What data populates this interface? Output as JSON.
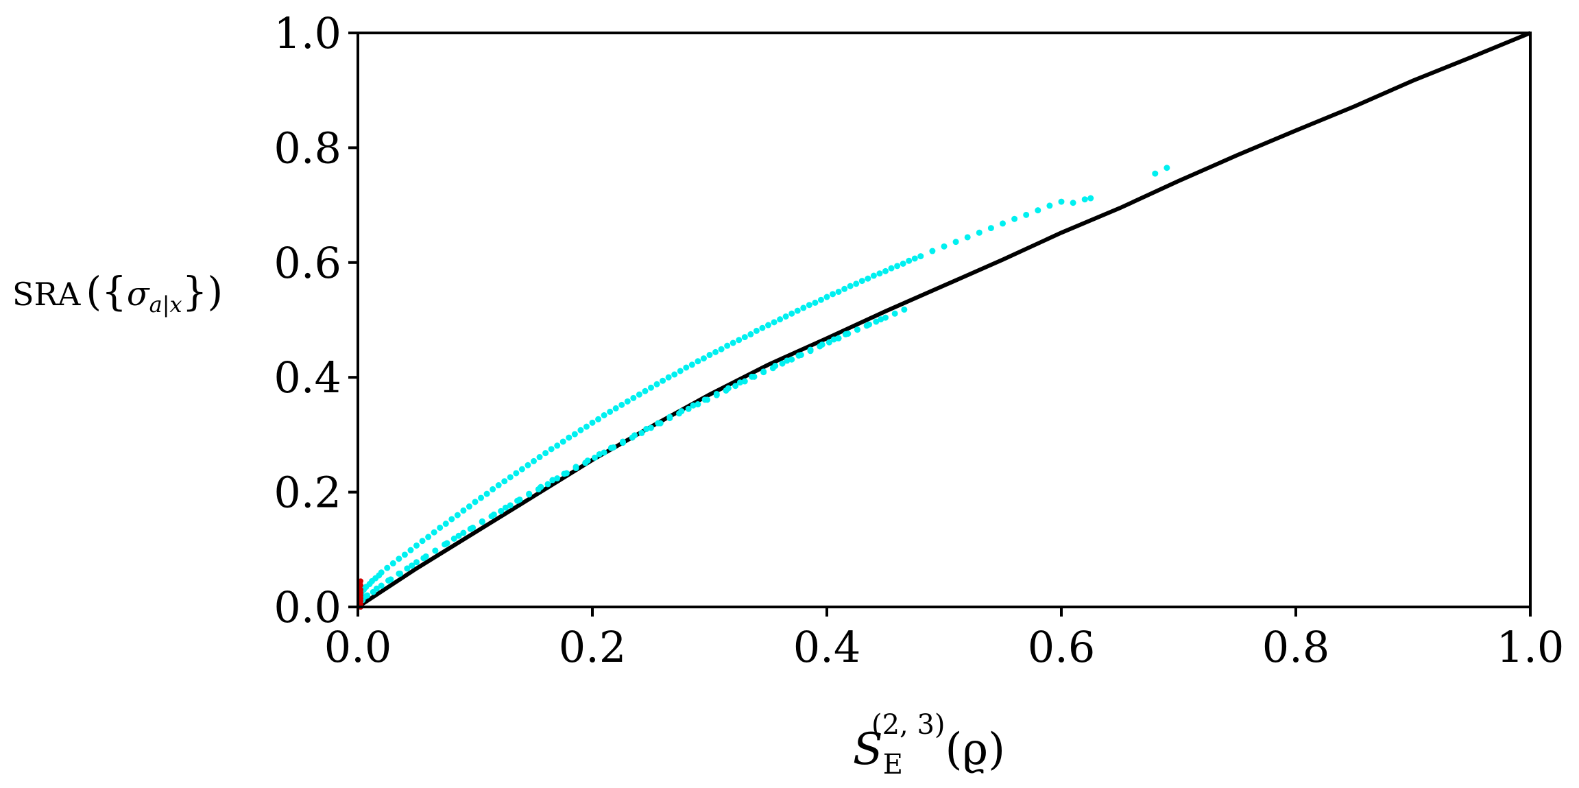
{
  "chart_data": {
    "type": "scatter",
    "xlabel": {
      "main": "S",
      "subscript": "E",
      "superscript": "(2, 3)",
      "arg": "(ϱ)"
    },
    "ylabel": {
      "prefix": "SRA",
      "open": "({",
      "sigma": "σ",
      "subscript": "a|x",
      "close": "})"
    },
    "xlim": [
      0.0,
      1.0
    ],
    "ylim": [
      0.0,
      1.0
    ],
    "xticks": [
      "0.0",
      "0.2",
      "0.4",
      "0.6",
      "0.8",
      "1.0"
    ],
    "yticks": [
      "0.0",
      "0.2",
      "0.4",
      "0.6",
      "0.8",
      "1.0"
    ],
    "grid": false,
    "legend": "none",
    "series": [
      {
        "role": "lower-bound-curve",
        "color": "#000000",
        "style": "line",
        "x": [
          0.0,
          0.05,
          0.1,
          0.15,
          0.2,
          0.25,
          0.3,
          0.35,
          0.4,
          0.45,
          0.5,
          0.55,
          0.6,
          0.65,
          0.7,
          0.75,
          0.8,
          0.85,
          0.9,
          0.95,
          1.0
        ],
        "y": [
          0.0,
          0.067,
          0.13,
          0.193,
          0.256,
          0.314,
          0.37,
          0.422,
          0.468,
          0.515,
          0.56,
          0.605,
          0.652,
          0.695,
          0.742,
          0.787,
          0.83,
          0.872,
          0.917,
          0.958,
          1.0
        ]
      },
      {
        "role": "samples",
        "color": "#00f0f0",
        "style": "points",
        "x": [
          0.003,
          0.005,
          0.007,
          0.01,
          0.012,
          0.015,
          0.018,
          0.02,
          0.025,
          0.03,
          0.035,
          0.04,
          0.045,
          0.05,
          0.055,
          0.06,
          0.065,
          0.07,
          0.075,
          0.08,
          0.085,
          0.09,
          0.095,
          0.1,
          0.105,
          0.11,
          0.115,
          0.12,
          0.125,
          0.13,
          0.135,
          0.14,
          0.145,
          0.15,
          0.155,
          0.16,
          0.165,
          0.17,
          0.175,
          0.18,
          0.185,
          0.19,
          0.195,
          0.2,
          0.205,
          0.21,
          0.215,
          0.22,
          0.225,
          0.23,
          0.235,
          0.24,
          0.245,
          0.25,
          0.255,
          0.26,
          0.265,
          0.27,
          0.275,
          0.28,
          0.285,
          0.29,
          0.295,
          0.3,
          0.305,
          0.31,
          0.315,
          0.32,
          0.325,
          0.33,
          0.335,
          0.34,
          0.345,
          0.35,
          0.355,
          0.36,
          0.365,
          0.37,
          0.375,
          0.38,
          0.385,
          0.39,
          0.395,
          0.4,
          0.405,
          0.41,
          0.415,
          0.42,
          0.425,
          0.43,
          0.435,
          0.44,
          0.445,
          0.45,
          0.455,
          0.46,
          0.465,
          0.47,
          0.475,
          0.48,
          0.49,
          0.5,
          0.51,
          0.52,
          0.53,
          0.54,
          0.55,
          0.56,
          0.57,
          0.58,
          0.59,
          0.6,
          0.61,
          0.62,
          0.625,
          0.68,
          0.69,
          0.004,
          0.008,
          0.013,
          0.02,
          0.028,
          0.035,
          0.042,
          0.05,
          0.058,
          0.066,
          0.074,
          0.082,
          0.09,
          0.098,
          0.106,
          0.114,
          0.122,
          0.13,
          0.138,
          0.146,
          0.154,
          0.162,
          0.17,
          0.178,
          0.186,
          0.194,
          0.202,
          0.21,
          0.218,
          0.226,
          0.234,
          0.242,
          0.25,
          0.258,
          0.266,
          0.274,
          0.282,
          0.29,
          0.298,
          0.306,
          0.314,
          0.322,
          0.33,
          0.338,
          0.346,
          0.354,
          0.362,
          0.37,
          0.378,
          0.386,
          0.394,
          0.402,
          0.41,
          0.418,
          0.426,
          0.434,
          0.442,
          0.45,
          0.458,
          0.466,
          0.006,
          0.016,
          0.026,
          0.036,
          0.046,
          0.056,
          0.066,
          0.076,
          0.086,
          0.096,
          0.106,
          0.116,
          0.126,
          0.136,
          0.146,
          0.156,
          0.166,
          0.176,
          0.186,
          0.196,
          0.206,
          0.216,
          0.226,
          0.236,
          0.246,
          0.256,
          0.266,
          0.276,
          0.286,
          0.296,
          0.306,
          0.316,
          0.326,
          0.336,
          0.346,
          0.356,
          0.366,
          0.376,
          0.386,
          0.396,
          0.406,
          0.416,
          0.426,
          0.436,
          0.446
        ],
        "y": [
          0.025,
          0.03,
          0.035,
          0.04,
          0.045,
          0.05,
          0.055,
          0.06,
          0.068,
          0.076,
          0.084,
          0.091,
          0.099,
          0.107,
          0.115,
          0.122,
          0.13,
          0.138,
          0.145,
          0.153,
          0.16,
          0.168,
          0.175,
          0.183,
          0.19,
          0.197,
          0.205,
          0.212,
          0.219,
          0.226,
          0.233,
          0.24,
          0.247,
          0.254,
          0.261,
          0.268,
          0.275,
          0.281,
          0.288,
          0.295,
          0.301,
          0.308,
          0.314,
          0.321,
          0.327,
          0.334,
          0.34,
          0.346,
          0.352,
          0.358,
          0.364,
          0.37,
          0.376,
          0.382,
          0.388,
          0.394,
          0.4,
          0.405,
          0.411,
          0.417,
          0.422,
          0.428,
          0.433,
          0.439,
          0.444,
          0.449,
          0.455,
          0.46,
          0.465,
          0.47,
          0.475,
          0.481,
          0.486,
          0.491,
          0.496,
          0.501,
          0.506,
          0.511,
          0.516,
          0.521,
          0.526,
          0.53,
          0.535,
          0.54,
          0.545,
          0.549,
          0.554,
          0.559,
          0.563,
          0.568,
          0.572,
          0.577,
          0.581,
          0.585,
          0.59,
          0.594,
          0.598,
          0.603,
          0.607,
          0.611,
          0.62,
          0.628,
          0.636,
          0.644,
          0.652,
          0.66,
          0.668,
          0.676,
          0.683,
          0.691,
          0.699,
          0.706,
          0.704,
          0.71,
          0.712,
          0.755,
          0.765,
          0.012,
          0.02,
          0.026,
          0.037,
          0.048,
          0.058,
          0.067,
          0.078,
          0.088,
          0.098,
          0.109,
          0.119,
          0.129,
          0.138,
          0.148,
          0.158,
          0.167,
          0.177,
          0.187,
          0.196,
          0.205,
          0.214,
          0.224,
          0.233,
          0.242,
          0.251,
          0.26,
          0.269,
          0.278,
          0.286,
          0.295,
          0.303,
          0.312,
          0.32,
          0.329,
          0.337,
          0.345,
          0.353,
          0.361,
          0.369,
          0.377,
          0.385,
          0.393,
          0.401,
          0.409,
          0.416,
          0.424,
          0.431,
          0.439,
          0.446,
          0.454,
          0.461,
          0.468,
          0.476,
          0.483,
          0.49,
          0.497,
          0.504,
          0.511,
          0.518,
          0.018,
          0.032,
          0.046,
          0.058,
          0.072,
          0.085,
          0.098,
          0.111,
          0.124,
          0.136,
          0.149,
          0.161,
          0.173,
          0.185,
          0.197,
          0.209,
          0.221,
          0.232,
          0.244,
          0.255,
          0.266,
          0.277,
          0.288,
          0.299,
          0.31,
          0.32,
          0.331,
          0.341,
          0.351,
          0.361,
          0.371,
          0.381,
          0.391,
          0.401,
          0.41,
          0.42,
          0.429,
          0.438,
          0.448,
          0.457,
          0.466,
          0.475,
          0.483,
          0.492,
          0.501
        ]
      },
      {
        "role": "near-zero-points",
        "color": "#d00000",
        "style": "points",
        "x": [
          0.0,
          0.0,
          0.0,
          0.0,
          0.0,
          0.0,
          0.0,
          0.0,
          0.0
        ],
        "y": [
          0.0,
          0.005,
          0.01,
          0.015,
          0.02,
          0.025,
          0.03,
          0.038,
          0.045
        ]
      }
    ]
  }
}
